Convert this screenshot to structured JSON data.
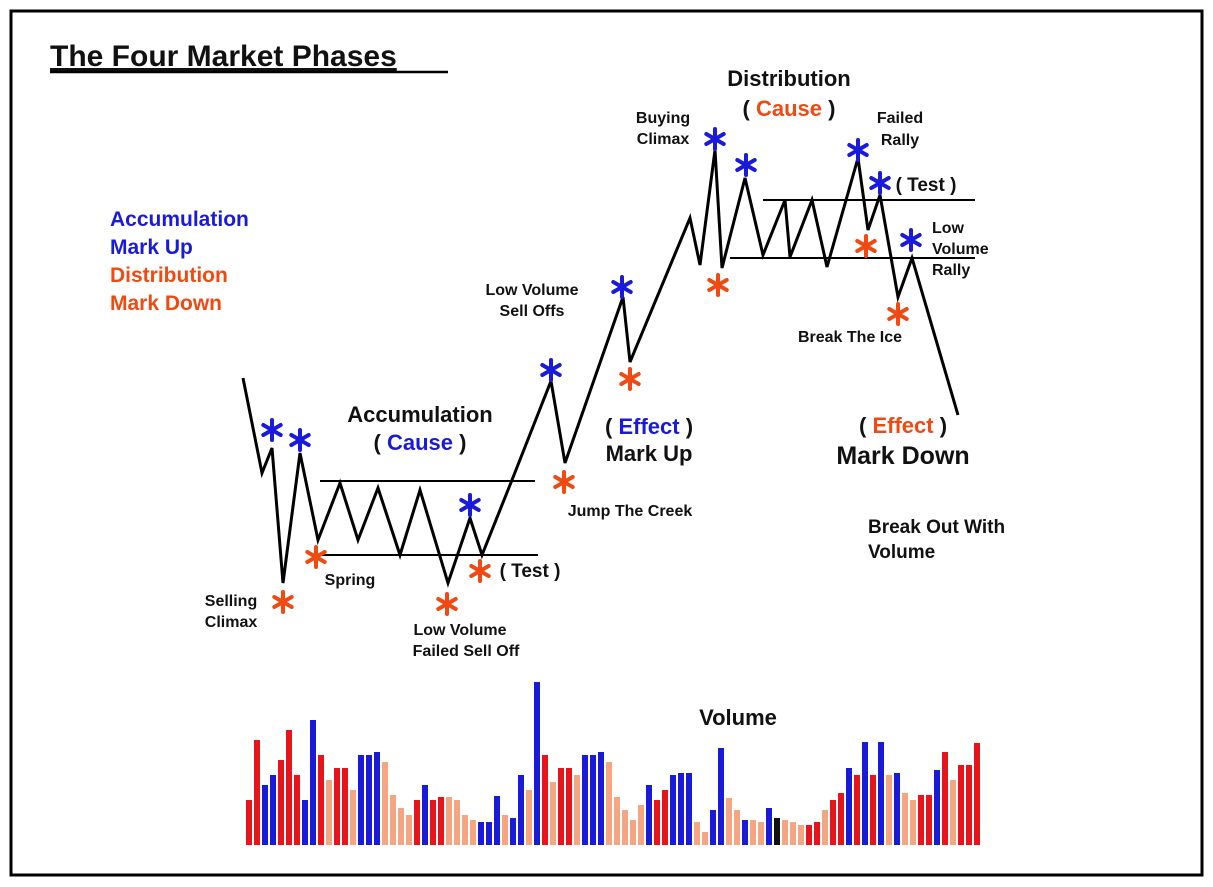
{
  "title": "The Four Market Phases",
  "legend": [
    {
      "text": "Accumulation",
      "color": "#1a1adb"
    },
    {
      "text": "Mark Up",
      "color": "#1a1adb"
    },
    {
      "text": "Distribution",
      "color": "#f04a12"
    },
    {
      "text": "Mark Down",
      "color": "#f04a12"
    }
  ],
  "accumulation": {
    "name": "Accumulation",
    "cause": [
      "(",
      "Cause",
      ")"
    ]
  },
  "distribution": {
    "name": "Distribution",
    "cause": [
      "(",
      "Cause",
      ")"
    ]
  },
  "mark_up": {
    "effect": [
      "(",
      "Effect",
      ")"
    ],
    "name": "Mark Up"
  },
  "mark_down": {
    "effect": [
      "(",
      "Effect",
      ")"
    ],
    "name": "Mark Down"
  },
  "labels": {
    "selling_climax": [
      "Selling",
      "Climax"
    ],
    "spring": "Spring",
    "low_volume_failed_sell_off": [
      "Low Volume",
      "Failed Sell Off"
    ],
    "test_accumulation": "( Test )",
    "jump_the_creek": "Jump The Creek",
    "low_volume_sell_offs": [
      "Low Volume",
      "Sell Offs"
    ],
    "buying_climax": [
      "Buying",
      "Climax"
    ],
    "failed_rally": [
      "Failed",
      "Rally"
    ],
    "test_distribution": "( Test )",
    "low_volume_rally": [
      "Low",
      "Volume",
      "Rally"
    ],
    "break_the_ice": "Break The Ice",
    "break_out_with_volume": [
      "Break Out With",
      "Volume"
    ]
  },
  "volume": {
    "title": "Volume",
    "values": [
      45,
      105,
      60,
      70,
      85,
      115,
      70,
      45,
      125,
      90,
      65,
      77,
      77,
      55,
      90,
      90,
      93,
      83,
      50,
      37,
      30,
      45,
      60,
      45,
      48,
      48,
      45,
      30,
      25,
      23,
      23,
      49,
      30,
      27,
      70,
      55,
      163,
      90,
      63,
      77,
      77,
      70,
      90,
      90,
      93,
      83,
      48,
      35,
      25,
      40,
      60,
      45,
      55,
      70,
      72,
      72,
      23,
      13,
      35,
      97,
      47,
      35,
      25,
      25,
      23,
      37,
      27,
      25,
      23,
      20,
      20,
      23,
      35,
      45,
      52,
      77,
      70,
      103,
      70,
      103,
      70,
      72,
      52,
      45,
      50,
      50,
      75,
      93,
      65,
      80,
      80,
      102
    ],
    "colors": [
      "#e8141b",
      "#e8141b",
      "#1a1adb",
      "#1a1adb",
      "#e8141b",
      "#e8141b",
      "#e8141b",
      "#1a1adb",
      "#1a1adb",
      "#e8141b",
      "#f4a582",
      "#e8141b",
      "#e8141b",
      "#f4a582",
      "#1a1adb",
      "#1a1adb",
      "#1a1adb",
      "#f4a582",
      "#f4a582",
      "#f4a582",
      "#f4a582",
      "#e8141b",
      "#1a1adb",
      "#e8141b",
      "#e8141b",
      "#f4a582",
      "#f4a582",
      "#f4a582",
      "#f4a582",
      "#1a1adb",
      "#1a1adb",
      "#1a1adb",
      "#f4a582",
      "#1a1adb",
      "#1a1adb",
      "#f4a582",
      "#1a1adb",
      "#e8141b",
      "#f4a582",
      "#e8141b",
      "#e8141b",
      "#f4a582",
      "#1a1adb",
      "#1a1adb",
      "#1a1adb",
      "#f4a582",
      "#f4a582",
      "#f4a582",
      "#f4a582",
      "#f4a582",
      "#1a1adb",
      "#e8141b",
      "#e8141b",
      "#1a1adb",
      "#1a1adb",
      "#1a1adb",
      "#f4a582",
      "#f4a582",
      "#1a1adb",
      "#1a1adb",
      "#f4a582",
      "#f4a582",
      "#1a1adb",
      "#f4a582",
      "#f4a582",
      "#1a1adb",
      "#111111",
      "#f4a582",
      "#f4a582",
      "#f4a582",
      "#e8141b",
      "#e8141b",
      "#f4a582",
      "#e8141b",
      "#e8141b",
      "#1a1adb",
      "#e8141b",
      "#1a1adb",
      "#e8141b",
      "#1a1adb",
      "#f4a582",
      "#1a1adb",
      "#f4a582",
      "#f4a582",
      "#e8141b",
      "#e8141b",
      "#1a1adb",
      "#e8141b",
      "#f4a582",
      "#e8141b",
      "#e8141b",
      "#e8141b"
    ]
  }
}
